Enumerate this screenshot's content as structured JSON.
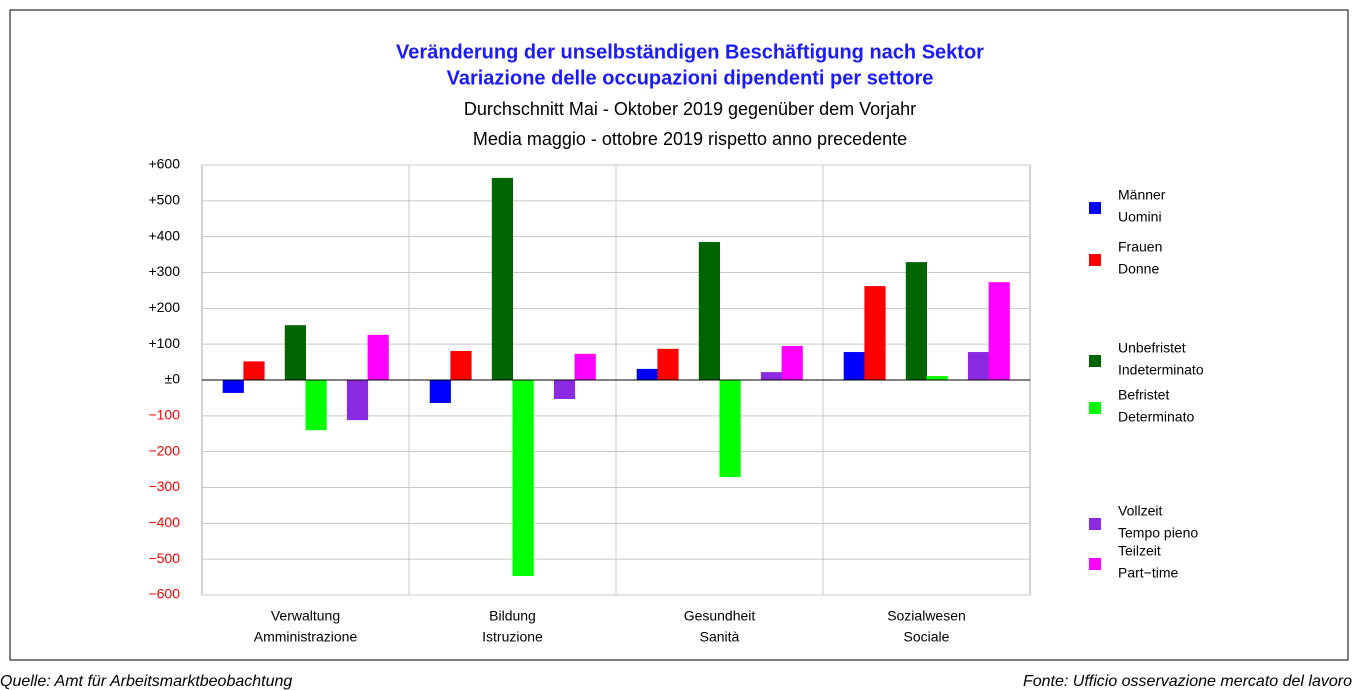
{
  "chart_data": {
    "type": "bar",
    "title": [
      "Veränderung der unselbständigen Beschäftigung nach Sektor",
      "Variazione delle occupazioni dipendenti per settore"
    ],
    "subtitle": [
      "Durchschnitt Mai - Oktober 2019 gegenüber dem Vorjahr",
      "Media maggio - ottobre 2019 rispetto anno precedente"
    ],
    "source_left": "Quelle: Amt für Arbeitsmarktbeobachtung",
    "source_right": "Fonte: Ufficio osservazione mercato del lavoro",
    "categories": [
      [
        "Verwaltung",
        "Amministrazione"
      ],
      [
        "Bildung",
        "Istruzione"
      ],
      [
        "Gesundheit",
        "Sanità"
      ],
      [
        "Sozialwesen",
        "Sociale"
      ]
    ],
    "series": [
      {
        "name": [
          "Männer",
          "Uomini"
        ],
        "color": "#0000ff",
        "values": [
          -36,
          -64,
          31,
          78
        ]
      },
      {
        "name": [
          "Frauen",
          "Donne"
        ],
        "color": "#ff0000",
        "values": [
          52,
          81,
          87,
          262
        ]
      },
      {
        "name": [
          "Unbefristet",
          "Indeterminato"
        ],
        "color": "#006400",
        "values": [
          153,
          564,
          385,
          329
        ]
      },
      {
        "name": [
          "Befristet",
          "Determinato"
        ],
        "color": "#00ff00",
        "values": [
          -140,
          -547,
          -271,
          11
        ]
      },
      {
        "name": [
          "Vollzeit",
          "Tempo pieno"
        ],
        "color": "#8a2be2",
        "values": [
          -112,
          -53,
          22,
          78
        ]
      },
      {
        "name": [
          "Teilzeit",
          "Part−time"
        ],
        "color": "#ff00ff",
        "values": [
          126,
          73,
          95,
          273
        ]
      }
    ],
    "ylim": [
      -600,
      600
    ],
    "yticks": [
      {
        "value": -600,
        "label": "−600"
      },
      {
        "value": -500,
        "label": "−500"
      },
      {
        "value": -400,
        "label": "−400"
      },
      {
        "value": -300,
        "label": "−300"
      },
      {
        "value": -200,
        "label": "−200"
      },
      {
        "value": -100,
        "label": "−100"
      },
      {
        "value": 0,
        "label": "±0"
      },
      {
        "value": 100,
        "label": "+100"
      },
      {
        "value": 200,
        "label": "+200"
      },
      {
        "value": 300,
        "label": "+300"
      },
      {
        "value": 400,
        "label": "+400"
      },
      {
        "value": 500,
        "label": "+500"
      },
      {
        "value": 600,
        "label": "+600"
      }
    ],
    "grid": true,
    "legend": "right",
    "positive_tick_color": "#000000",
    "negative_tick_color": "#ff0000"
  }
}
